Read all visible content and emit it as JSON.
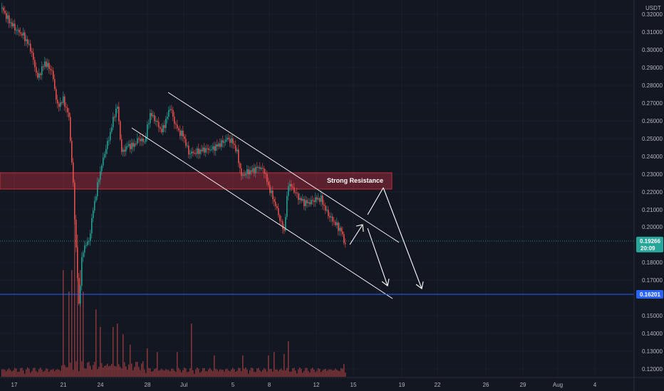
{
  "chart_data": {
    "type": "candlestick",
    "currency": "USDT",
    "y_axis_ticks": [
      "0.32000",
      "0.31000",
      "0.30000",
      "0.29000",
      "0.28000",
      "0.27000",
      "0.26000",
      "0.25000",
      "0.24000",
      "0.23000",
      "0.22000",
      "0.21000",
      "0.20000",
      "0.18000",
      "0.17000",
      "0.15000",
      "0.14000",
      "0.13000",
      "0.12000"
    ],
    "x_axis_ticks": [
      "17",
      "21",
      "24",
      "28",
      "Jul",
      "5",
      "8",
      "12",
      "15",
      "19",
      "22",
      "26",
      "29",
      "Aug",
      "4"
    ],
    "ylim": [
      0.1185,
      0.3245
    ],
    "current_price": {
      "price": "0.19266",
      "countdown": "20:09",
      "color": "#26a69a"
    },
    "horizontal_level": {
      "price": "0.16201",
      "color": "#2962ff"
    },
    "resistance_zone": {
      "label": "Strong Resistance",
      "low": 0.2214,
      "high": 0.231,
      "color": "#ef5350"
    },
    "channel": {
      "upper": [
        [
          "Jun 29",
          0.2775
        ],
        [
          "Jul 19",
          0.212
        ]
      ],
      "lower": [
        [
          "Jun 26",
          0.2555
        ],
        [
          "Jul 19",
          0.158
        ]
      ]
    },
    "up_color": "#26a69a",
    "down_color": "#ef5350",
    "volume_color": "#ef5350"
  }
}
